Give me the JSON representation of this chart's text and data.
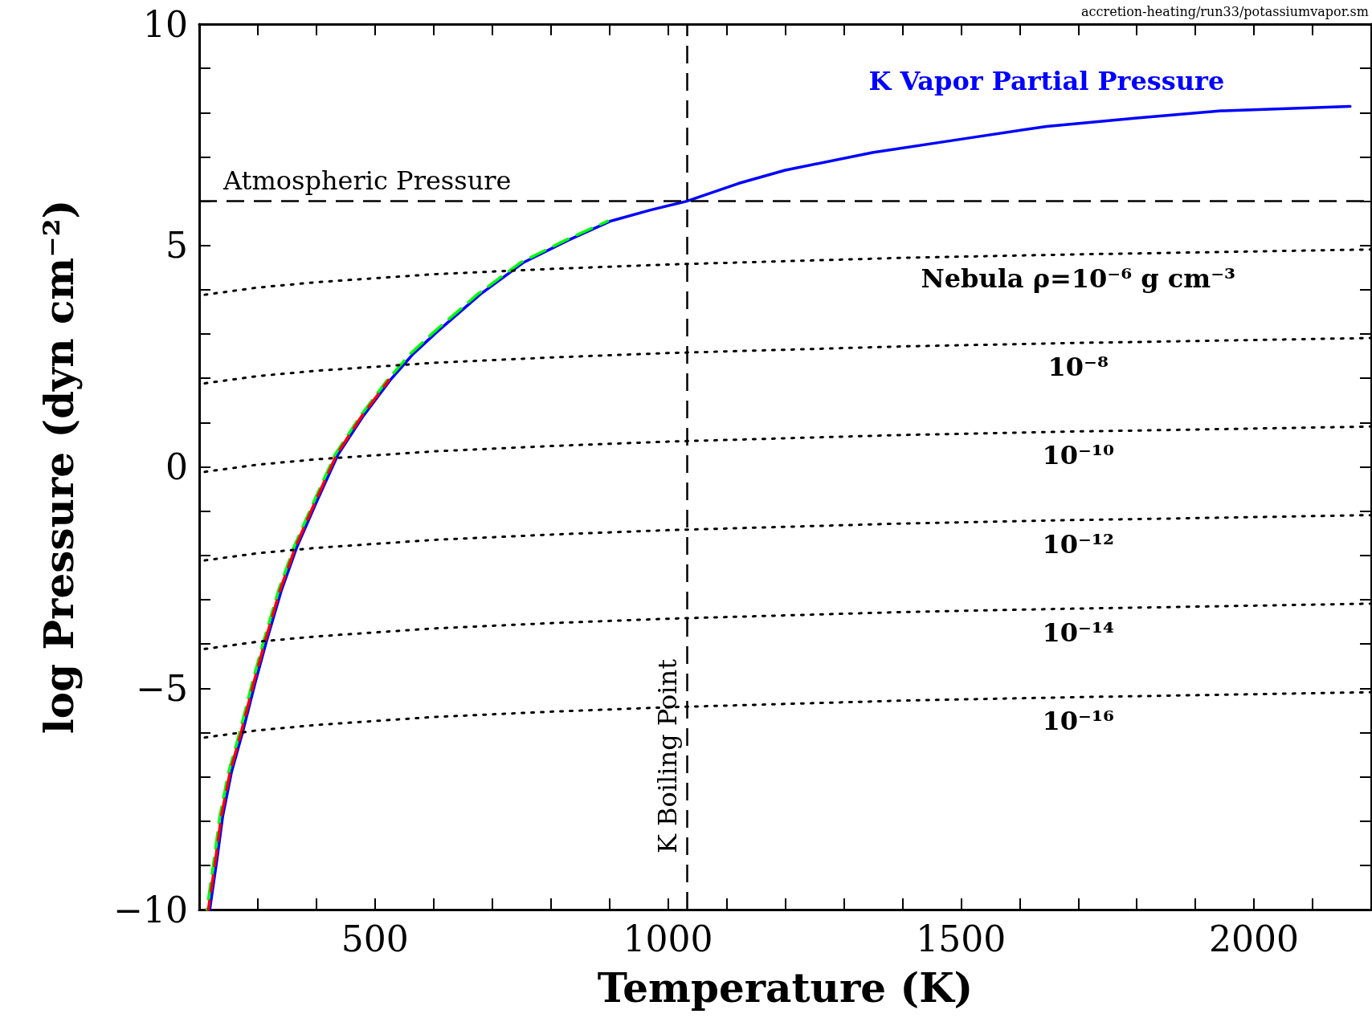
{
  "chart_data": {
    "type": "line",
    "xlabel": "Temperature (K)",
    "ylabel": "log Pressure (dyn cm⁻²)",
    "xlim": [
      200,
      2200
    ],
    "ylim": [
      -10,
      10
    ],
    "xticks": [
      {
        "value": 200,
        "label": null
      },
      {
        "value": 300,
        "label": null
      },
      {
        "value": 400,
        "label": null
      },
      500,
      {
        "value": 600,
        "label": null
      },
      {
        "value": 700,
        "label": null
      },
      {
        "value": 800,
        "label": null
      },
      {
        "value": 900,
        "label": null
      },
      1000,
      {
        "value": 1100,
        "label": null
      },
      {
        "value": 1200,
        "label": null
      },
      {
        "value": 1300,
        "label": null
      },
      {
        "value": 1400,
        "label": null
      },
      1500,
      {
        "value": 1600,
        "label": null
      },
      {
        "value": 1700,
        "label": null
      },
      {
        "value": 1800,
        "label": null
      },
      {
        "value": 1900,
        "label": null
      },
      2000,
      {
        "value": 2100,
        "label": null
      },
      {
        "value": 2200,
        "label": null
      }
    ],
    "yticks": [
      {
        "value": -10,
        "label": "−10"
      },
      {
        "value": -9,
        "label": null
      },
      {
        "value": -8,
        "label": null
      },
      {
        "value": -7,
        "label": null
      },
      {
        "value": -6,
        "label": null
      },
      {
        "value": -5,
        "label": "−5"
      },
      {
        "value": -4,
        "label": null
      },
      {
        "value": -3,
        "label": null
      },
      {
        "value": -2,
        "label": null
      },
      {
        "value": -1,
        "label": null
      },
      0,
      {
        "value": 1,
        "label": null
      },
      {
        "value": 2,
        "label": null
      },
      {
        "value": 3,
        "label": null
      },
      {
        "value": 4,
        "label": null
      },
      5,
      {
        "value": 6,
        "label": null
      },
      {
        "value": 7,
        "label": null
      },
      {
        "value": 8,
        "label": null
      },
      {
        "value": 9,
        "label": null
      },
      10
    ],
    "grid": false,
    "legend": false,
    "marker": "none",
    "series": [
      {
        "name": "K Vapor Partial Pressure",
        "color": "#0000ff",
        "line_style": "solid",
        "x": [
          218,
          230,
          240,
          255,
          274,
          295,
          315,
          340,
          367,
          400,
          437,
          480,
          526,
          565,
          605,
          680,
          754,
          830,
          902,
          970,
          1032,
          1120,
          1200,
          1349,
          1500,
          1646,
          1800,
          1944,
          2164
        ],
        "values": [
          -10,
          -8.9,
          -7.9,
          -6.9,
          -6.0,
          -4.9,
          -3.93,
          -2.8,
          -1.8,
          -0.8,
          0.28,
          1.15,
          1.96,
          2.55,
          3.04,
          3.9,
          4.62,
          5.12,
          5.55,
          5.8,
          6.0,
          6.4,
          6.7,
          7.1,
          7.4,
          7.69,
          7.88,
          8.04,
          8.14
        ]
      },
      {
        "color": "#00ff00",
        "line_style": "dashed",
        "x": [
          213,
          225,
          235,
          250,
          269,
          290,
          310,
          335,
          362,
          395,
          432,
          475,
          521,
          560,
          600,
          675,
          749,
          825,
          897
        ],
        "values": [
          -10,
          -8.9,
          -7.9,
          -6.9,
          -6.0,
          -4.9,
          -3.93,
          -2.8,
          -1.8,
          -0.8,
          0.28,
          1.15,
          1.96,
          2.55,
          3.04,
          3.9,
          4.62,
          5.12,
          5.55
        ]
      },
      {
        "color": "#ff0000",
        "line_style": "dashed",
        "x": [
          215.5,
          227.5,
          237.5,
          252.5,
          271.5,
          292.5,
          312.5,
          337.5,
          364.5,
          397.5,
          434.5,
          477.5,
          523.5
        ],
        "values": [
          -10,
          -8.9,
          -7.9,
          -6.9,
          -6.0,
          -4.9,
          -3.93,
          -2.8,
          -1.8,
          -0.8,
          0.28,
          1.15,
          1.96
        ]
      },
      {
        "name": "Nebula ρ=10⁻⁶ g cm⁻³",
        "color": "#000000",
        "line_style": "dotted",
        "x": [
          200,
          300,
          400,
          600,
          800,
          1000,
          1400,
          1700,
          1800,
          2200
        ],
        "values": [
          3.87,
          4.05,
          4.17,
          4.35,
          4.47,
          4.57,
          4.72,
          4.8,
          4.82,
          4.91
        ]
      },
      {
        "name": "10⁻⁸",
        "color": "#000000",
        "line_style": "dotted",
        "x": [
          200,
          300,
          400,
          600,
          800,
          1000,
          1400,
          1700,
          1800,
          2200
        ],
        "values": [
          1.87,
          2.05,
          2.17,
          2.35,
          2.47,
          2.57,
          2.72,
          2.8,
          2.82,
          2.91
        ]
      },
      {
        "name": "10⁻¹⁰",
        "color": "#000000",
        "line_style": "dotted",
        "x": [
          200,
          300,
          400,
          600,
          800,
          1000,
          1400,
          1700,
          1800,
          2200
        ],
        "values": [
          -0.13,
          0.05,
          0.17,
          0.35,
          0.47,
          0.57,
          0.72,
          0.8,
          0.82,
          0.91
        ]
      },
      {
        "name": "10⁻¹²",
        "color": "#000000",
        "line_style": "dotted",
        "x": [
          200,
          300,
          400,
          600,
          800,
          1000,
          1400,
          1700,
          1800,
          2200
        ],
        "values": [
          -2.13,
          -1.95,
          -1.83,
          -1.65,
          -1.53,
          -1.43,
          -1.28,
          -1.2,
          -1.18,
          -1.09
        ]
      },
      {
        "name": "10⁻¹⁴",
        "color": "#000000",
        "line_style": "dotted",
        "x": [
          200,
          300,
          400,
          600,
          800,
          1000,
          1400,
          1700,
          1800,
          2200
        ],
        "values": [
          -4.13,
          -3.95,
          -3.83,
          -3.65,
          -3.53,
          -3.43,
          -3.28,
          -3.2,
          -3.18,
          -3.09
        ]
      },
      {
        "name": "10⁻¹⁶",
        "color": "#000000",
        "line_style": "dotted",
        "x": [
          200,
          300,
          400,
          600,
          800,
          1000,
          1400,
          1700,
          1800,
          2200
        ],
        "values": [
          -6.13,
          -5.95,
          -5.83,
          -5.65,
          -5.53,
          -5.43,
          -5.28,
          -5.2,
          -5.18,
          -5.09
        ]
      }
    ],
    "ref_lines": [
      {
        "axis": "y",
        "value": 6,
        "label": "Atmospheric Pressure",
        "color": "#000000",
        "line_style": "dashed"
      },
      {
        "axis": "x",
        "value": 1032,
        "label": "K Boiling Point",
        "color": "#000000",
        "line_style": "dashed"
      }
    ],
    "annotations": [
      "accretion-heating/run33/potassiumvapor.sm"
    ]
  }
}
